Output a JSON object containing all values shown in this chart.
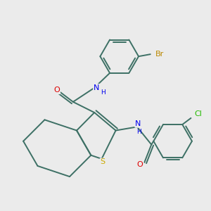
{
  "background_color": "#ebebeb",
  "bond_color": "#3d7065",
  "atom_colors": {
    "N": "#0000ee",
    "O": "#dd0000",
    "S": "#ccaa00",
    "Br": "#bb8800",
    "Cl": "#22bb00",
    "C": "#3d7065",
    "H": "#3d7065"
  },
  "figsize": [
    3.0,
    3.0
  ],
  "dpi": 100
}
